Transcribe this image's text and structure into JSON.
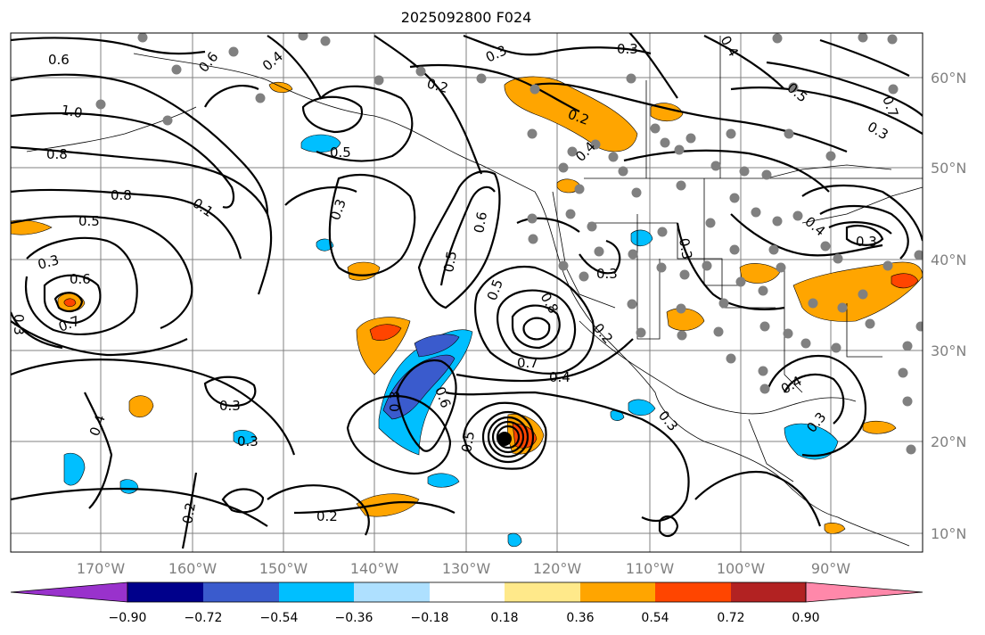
{
  "title": "2025092800 F024",
  "axes": {
    "x_ticks": [
      "170°W",
      "160°W",
      "150°W",
      "140°W",
      "130°W",
      "120°W",
      "110°W",
      "100°W",
      "90°W"
    ],
    "y_ticks": [
      "60°N",
      "50°N",
      "40°N",
      "30°N",
      "20°N",
      "10°N"
    ]
  },
  "colorbar": {
    "ticks": [
      "−0.90",
      "−0.72",
      "−0.54",
      "−0.36",
      "−0.18",
      "0.18",
      "0.36",
      "0.54",
      "0.72",
      "0.90"
    ],
    "colors": [
      "#9932cc",
      "#00008b",
      "#3a5bcd",
      "#00bfff",
      "#aee0ff",
      "#ffffff",
      "#ffe98a",
      "#ffa500",
      "#ff4500",
      "#b22222",
      "#ff88aa"
    ]
  },
  "contour_labels": [
    {
      "id": "c1",
      "text": "0.6"
    },
    {
      "id": "c2",
      "text": "1.0"
    },
    {
      "id": "c3",
      "text": "0.8"
    },
    {
      "id": "c4",
      "text": "0.8"
    },
    {
      "id": "c5",
      "text": "0.5"
    },
    {
      "id": "c6",
      "text": "0.3"
    },
    {
      "id": "c7",
      "text": "0.6"
    },
    {
      "id": "c8",
      "text": "0.7"
    },
    {
      "id": "c9",
      "text": "0.3"
    },
    {
      "id": "c10",
      "text": "0.6"
    },
    {
      "id": "c11",
      "text": "0.4"
    },
    {
      "id": "c12",
      "text": "0.2"
    },
    {
      "id": "c13",
      "text": "0.5"
    },
    {
      "id": "c14",
      "text": "0.3"
    },
    {
      "id": "c15",
      "text": "0.3"
    },
    {
      "id": "c16",
      "text": "0.3"
    },
    {
      "id": "c17",
      "text": "0.2"
    },
    {
      "id": "c18",
      "text": "0.4"
    },
    {
      "id": "c19",
      "text": "0.6"
    },
    {
      "id": "c20",
      "text": "0.5"
    },
    {
      "id": "c21",
      "text": "0.5"
    },
    {
      "id": "c22",
      "text": "0.8"
    },
    {
      "id": "c23",
      "text": "0.7"
    },
    {
      "id": "c24",
      "text": "0.4"
    },
    {
      "id": "c25",
      "text": "0.3"
    },
    {
      "id": "c26",
      "text": "0.6"
    },
    {
      "id": "c27",
      "text": "0.5"
    },
    {
      "id": "c28",
      "text": "0.3"
    },
    {
      "id": "c29",
      "text": "0.3"
    },
    {
      "id": "c30",
      "text": "0.4"
    },
    {
      "id": "c31",
      "text": "0.2"
    },
    {
      "id": "c32",
      "text": "0.2"
    },
    {
      "id": "c33",
      "text": "0.2"
    },
    {
      "id": "c34",
      "text": "0.3"
    },
    {
      "id": "c35",
      "text": "0.3"
    },
    {
      "id": "c36",
      "text": "0.4"
    },
    {
      "id": "c37",
      "text": "0.3"
    },
    {
      "id": "c38",
      "text": "0.5"
    },
    {
      "id": "c39",
      "text": "0.7"
    },
    {
      "id": "c40",
      "text": "0.3"
    },
    {
      "id": "c41",
      "text": "0.4"
    },
    {
      "id": "c42",
      "text": "0.3"
    },
    {
      "id": "c43",
      "text": "0.4"
    },
    {
      "id": "c44",
      "text": "0.3"
    },
    {
      "id": "c45",
      "text": "0.1"
    }
  ]
}
